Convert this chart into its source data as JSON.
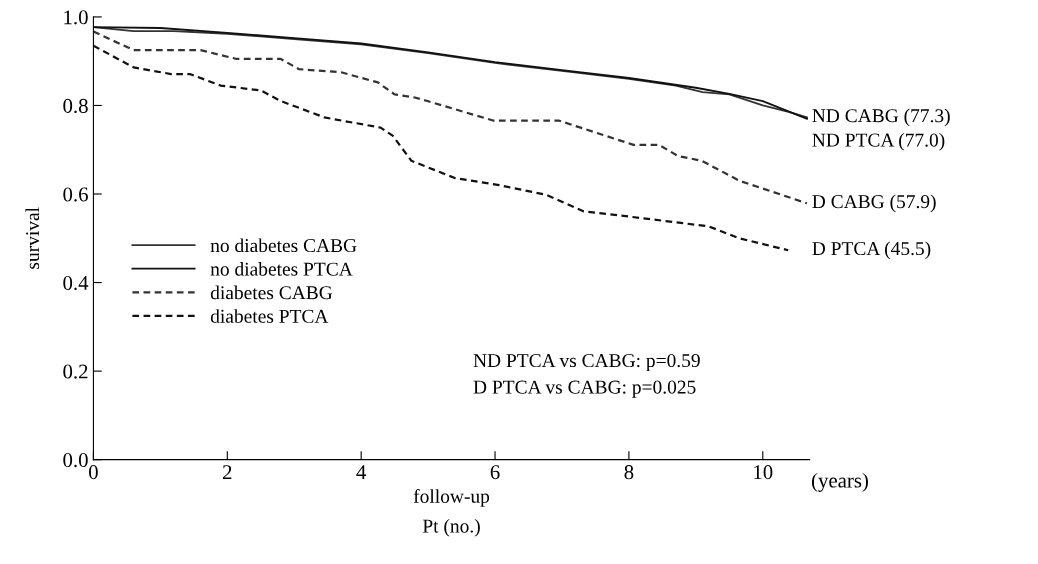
{
  "chart_data": {
    "type": "line",
    "xlabel": "follow-up\nPt (no.)",
    "ylabel": "survival",
    "xlim": [
      0,
      10.7
    ],
    "ylim": [
      0,
      1.0
    ],
    "xticks": [
      0,
      2,
      4,
      6,
      8,
      10
    ],
    "yticks": [
      {
        "value": 0,
        "label": "0.0"
      },
      0.2,
      0.4,
      0.6,
      0.8,
      {
        "value": 1.0,
        "label": "1.0"
      }
    ],
    "grid": false,
    "legend": "left",
    "marker": "none",
    "series": [
      {
        "name": "no diabetes CABG",
        "color": "#333333",
        "line_style": "solid",
        "x": [
          0,
          0.6,
          1.2,
          2,
          3,
          4,
          5,
          6,
          7,
          8,
          8.7,
          9.1,
          9.5,
          10,
          10.4,
          10.66
        ],
        "values": [
          0.977,
          0.968,
          0.968,
          0.962,
          0.95,
          0.938,
          0.918,
          0.896,
          0.878,
          0.86,
          0.845,
          0.83,
          0.825,
          0.8,
          0.785,
          0.773
        ]
      },
      {
        "name": "no diabetes PTCA",
        "color": "#111111",
        "line_style": "solid",
        "x": [
          0,
          1,
          2,
          3,
          4,
          5,
          6,
          7,
          8,
          9,
          9.5,
          10,
          10.66
        ],
        "values": [
          0.977,
          0.975,
          0.964,
          0.952,
          0.94,
          0.92,
          0.898,
          0.88,
          0.862,
          0.84,
          0.826,
          0.81,
          0.77
        ]
      },
      {
        "name": "diabetes CABG",
        "color": "#333333",
        "line_style": "dashed",
        "x": [
          0,
          0.6,
          1.6,
          2.14,
          2.8,
          3.07,
          3.7,
          4.25,
          4.5,
          4.8,
          4.99,
          5.97,
          6.95,
          8.07,
          8.45,
          8.73,
          9.09,
          9.65,
          10.66
        ],
        "values": [
          0.967,
          0.925,
          0.925,
          0.905,
          0.905,
          0.882,
          0.875,
          0.852,
          0.825,
          0.818,
          0.81,
          0.766,
          0.766,
          0.711,
          0.711,
          0.686,
          0.675,
          0.63,
          0.579
        ]
      },
      {
        "name": "diabetes PTCA",
        "color": "#111111",
        "line_style": "dashed",
        "x": [
          0,
          0.6,
          1.16,
          1.44,
          1.9,
          2.5,
          2.8,
          3.45,
          4.29,
          4.47,
          4.75,
          5.4,
          6.06,
          6.77,
          7.32,
          7.79,
          9.19,
          9.65,
          10.38
        ],
        "values": [
          0.935,
          0.886,
          0.871,
          0.871,
          0.845,
          0.834,
          0.81,
          0.773,
          0.75,
          0.732,
          0.675,
          0.636,
          0.62,
          0.598,
          0.561,
          0.553,
          0.527,
          0.5,
          0.473
        ]
      }
    ],
    "annotations": [
      "(years)",
      "ND PTCA vs CABG: p=0.59",
      "D PTCA vs CABG: p=0.025",
      "ND CABG (77.3)",
      "ND PTCA (77.0)",
      "D CABG (57.9)",
      "D PTCA (45.5)"
    ]
  }
}
